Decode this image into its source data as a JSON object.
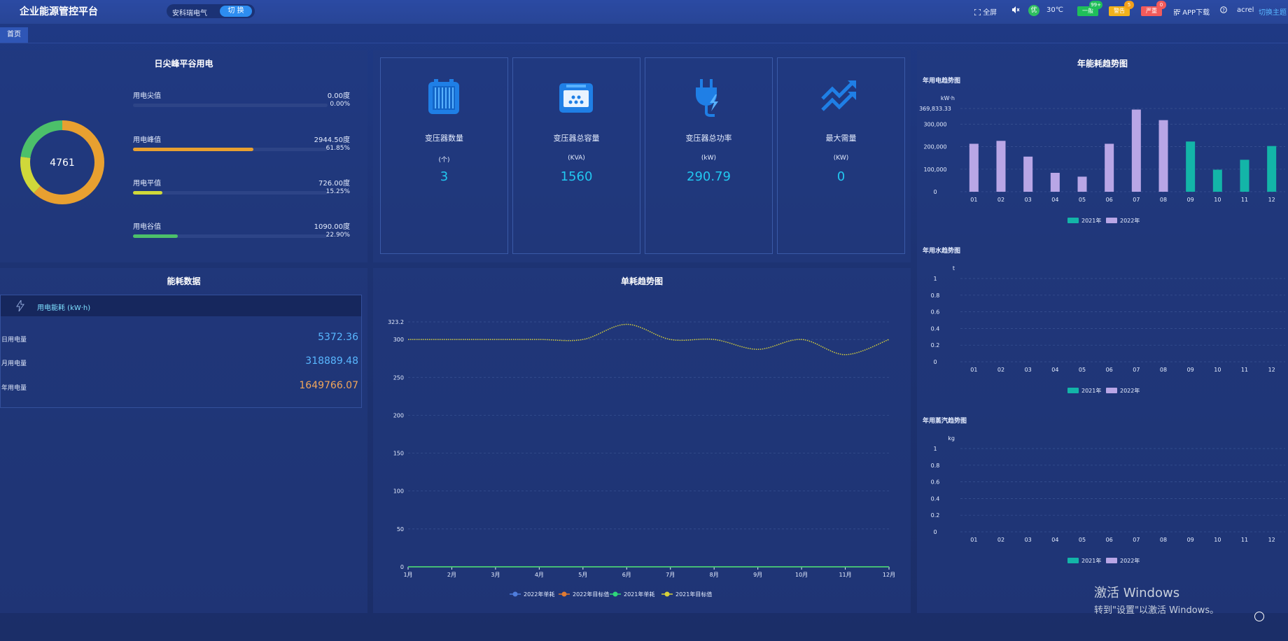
{
  "header": {
    "title": "企业能源管控平台",
    "site_name": "安科瑞电气",
    "switch_label": "切 换",
    "fullscreen": "全屏",
    "mute_icon": "mute-icon",
    "weather_badge": "优",
    "temperature": "30℃",
    "alarms": [
      {
        "label": "一般",
        "count": "99+",
        "color": "#1fbf5a",
        "badge_color": "#1fbf5a"
      },
      {
        "label": "警告",
        "count": "5",
        "color": "#f2b21b",
        "badge_color": "#f2a01b"
      },
      {
        "label": "严重",
        "count": "0",
        "color": "#f25b5b",
        "badge_color": "#f25b5b"
      }
    ],
    "app_download": "APP下载",
    "help_icon": "help-icon",
    "user": "acrel",
    "switch_theme": "切换主题"
  },
  "tabs": {
    "home": "首页"
  },
  "peak_valley": {
    "title": "日尖峰平谷用电",
    "total": "4761",
    "items": [
      {
        "label": "用电尖值",
        "value": "0.00度",
        "percent": "0.00%",
        "fraction": 0.0,
        "color": "#f2b21b"
      },
      {
        "label": "用电峰值",
        "value": "2944.50度",
        "percent": "61.85%",
        "fraction": 0.6185,
        "color": "#e8a030"
      },
      {
        "label": "用电平值",
        "value": "726.00度",
        "percent": "15.25%",
        "fraction": 0.1525,
        "color": "#cfd83a"
      },
      {
        "label": "用电谷值",
        "value": "1090.00度",
        "percent": "22.90%",
        "fraction": 0.229,
        "color": "#4cc06a"
      }
    ]
  },
  "kpis": [
    {
      "name": "变压器数量",
      "unit": "(个)",
      "value": "3",
      "icon": "transformer-icon"
    },
    {
      "name": "变压器总容量",
      "unit": "(KVA)",
      "value": "1560",
      "icon": "capacity-icon"
    },
    {
      "name": "变压器总功率",
      "unit": "(kW)",
      "value": "290.79",
      "icon": "power-plug-icon"
    },
    {
      "name": "最大需量",
      "unit": "(KW)",
      "value": "0",
      "icon": "trend-arrows-icon"
    }
  ],
  "energy": {
    "title": "能耗数据",
    "header": "用电能耗  (kW·h)",
    "rows": [
      {
        "label": "日用电量",
        "value": "5372.36",
        "color": "#59b7ff"
      },
      {
        "label": "月用电量",
        "value": "318889.48",
        "color": "#59b7ff"
      },
      {
        "label": "年用电量",
        "value": "1649766.07",
        "color": "#f2a65a"
      }
    ]
  },
  "yearly": {
    "title": "年能耗趋势图",
    "legend": [
      {
        "name": "2021年",
        "color": "#13b5a8"
      },
      {
        "name": "2022年",
        "color": "#b9a6e6"
      }
    ]
  },
  "chart_data": [
    {
      "type": "bar",
      "title": "年用电趋势图",
      "ylabel": "kW·h",
      "categories": [
        "01",
        "02",
        "03",
        "04",
        "05",
        "06",
        "07",
        "08",
        "09",
        "10",
        "11",
        "12"
      ],
      "ylim": [
        0,
        369833.33
      ],
      "yticks": [
        "0",
        "100,000",
        "200,000",
        "300,000",
        "369,833.33"
      ],
      "series": [
        {
          "name": "2021年",
          "color": "#13b5a8",
          "values": [
            null,
            null,
            null,
            null,
            null,
            null,
            null,
            null,
            223000,
            98000,
            142000,
            203000
          ]
        },
        {
          "name": "2022年",
          "color": "#b9a6e6",
          "values": [
            213000,
            226000,
            156000,
            84000,
            67000,
            213000,
            365000,
            318000,
            null,
            null,
            null,
            null
          ]
        }
      ]
    },
    {
      "type": "bar",
      "title": "年用水趋势图",
      "ylabel": "t",
      "categories": [
        "01",
        "02",
        "03",
        "04",
        "05",
        "06",
        "07",
        "08",
        "09",
        "10",
        "11",
        "12"
      ],
      "ylim": [
        0,
        1
      ],
      "yticks": [
        "0",
        "0.2",
        "0.4",
        "0.6",
        "0.8",
        "1"
      ],
      "series": [
        {
          "name": "2021年",
          "color": "#13b5a8",
          "values": [
            0,
            0,
            0,
            0,
            0,
            0,
            0,
            0,
            0,
            0,
            0,
            0
          ]
        },
        {
          "name": "2022年",
          "color": "#b9a6e6",
          "values": [
            0,
            0,
            0,
            0,
            0,
            0,
            0,
            0,
            0,
            0,
            0,
            0
          ]
        }
      ]
    },
    {
      "type": "bar",
      "title": "年用蒸汽趋势图",
      "ylabel": "kg",
      "categories": [
        "01",
        "02",
        "03",
        "04",
        "05",
        "06",
        "07",
        "08",
        "09",
        "10",
        "11",
        "12"
      ],
      "ylim": [
        0,
        1
      ],
      "yticks": [
        "0",
        "0.2",
        "0.4",
        "0.6",
        "0.8",
        "1"
      ],
      "series": [
        {
          "name": "2021年",
          "color": "#13b5a8",
          "values": [
            0,
            0,
            0,
            0,
            0,
            0,
            0,
            0,
            0,
            0,
            0,
            0
          ]
        },
        {
          "name": "2022年",
          "color": "#b9a6e6",
          "values": [
            0,
            0,
            0,
            0,
            0,
            0,
            0,
            0,
            0,
            0,
            0,
            0
          ]
        }
      ]
    },
    {
      "type": "line",
      "title": "单耗趋势图",
      "categories": [
        "1月",
        "2月",
        "3月",
        "4月",
        "5月",
        "6月",
        "7月",
        "8月",
        "9月",
        "10月",
        "11月",
        "12月"
      ],
      "ylim": [
        0,
        323.2
      ],
      "yticks": [
        "0",
        "50",
        "100",
        "150",
        "200",
        "250",
        "300",
        "323.2"
      ],
      "series": [
        {
          "name": "2022年单耗",
          "color": "#4f7ddc",
          "values": [
            0,
            0,
            0,
            0,
            0,
            0,
            0,
            0,
            0,
            0,
            0,
            0
          ]
        },
        {
          "name": "2022年目标值",
          "color": "#e07a32",
          "values": [
            0,
            0,
            0,
            0,
            0,
            0,
            0,
            0,
            0,
            0,
            0,
            0
          ]
        },
        {
          "name": "2021年单耗",
          "color": "#2ed87a",
          "values": [
            0,
            0,
            0,
            0,
            0,
            0,
            0,
            0,
            0,
            0,
            0,
            0
          ]
        },
        {
          "name": "2021年目标值",
          "color": "#d7d03a",
          "values": [
            300,
            300,
            300,
            300,
            300,
            320,
            300,
            300,
            287,
            300,
            280,
            300
          ]
        }
      ]
    }
  ],
  "watermark": {
    "line1": "激活 Windows",
    "line2": "转到\"设置\"以激活 Windows。"
  }
}
